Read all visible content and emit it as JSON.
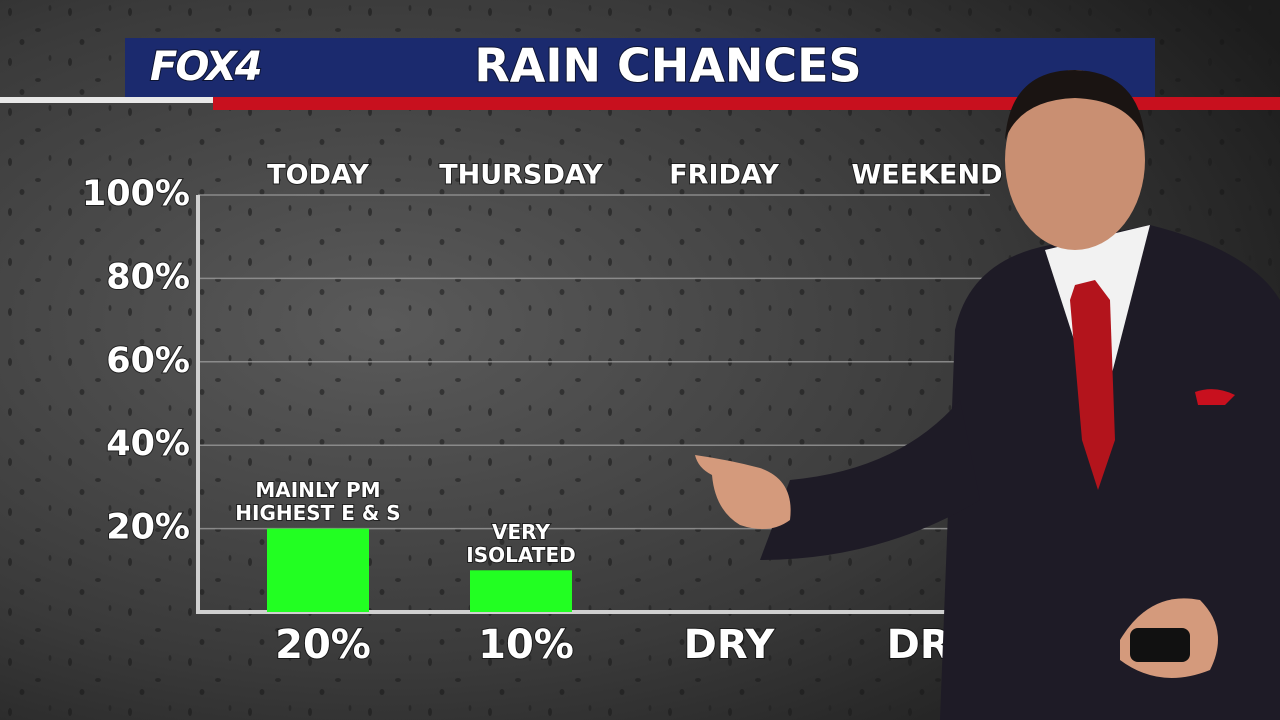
{
  "header": {
    "logo": "FOX4"
  },
  "chart_data": {
    "type": "bar",
    "title": "RAIN CHANCES",
    "categories": [
      "TODAY",
      "THURSDAY",
      "FRIDAY",
      "WEEKEND"
    ],
    "values": [
      20,
      10,
      0,
      0
    ],
    "value_labels": [
      "20%",
      "10%",
      "DRY",
      "DRY"
    ],
    "annotations": [
      [
        "MAINLY PM",
        "HIGHEST E & S"
      ],
      [
        "VERY",
        "ISOLATED"
      ]
    ],
    "color": "#22ff22",
    "ylim": [
      0,
      100
    ],
    "yticks": [
      {
        "value": 20,
        "label": "20%"
      },
      {
        "value": 40,
        "label": "40%"
      },
      {
        "value": 60,
        "label": "60%"
      },
      {
        "value": 80,
        "label": "80%"
      },
      {
        "value": 100,
        "label": "100%"
      }
    ],
    "grid": true
  }
}
